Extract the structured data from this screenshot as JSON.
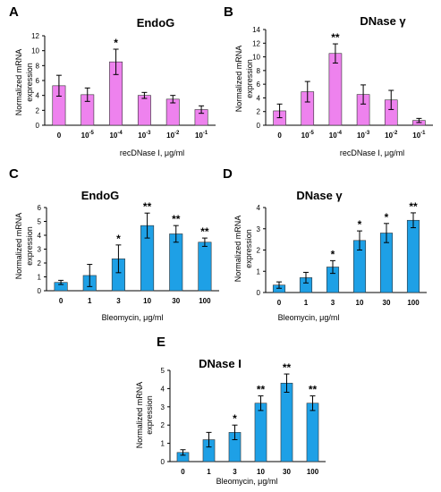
{
  "colors": {
    "pink": "#ee82ee",
    "blue": "#1ea0e6",
    "axis": "#000000"
  },
  "chart_data": [
    {
      "panel": "A",
      "title": "EndoG",
      "type": "bar",
      "xlabel": "recDNase I, μg/ml",
      "ylabel": "Normalized mRNA expression",
      "ylim": [
        0,
        12
      ],
      "yticks": [
        0,
        2,
        4,
        6,
        8,
        10,
        12
      ],
      "categories": [
        "0",
        "10⁻⁵",
        "10⁻⁴",
        "10⁻³",
        "10⁻²",
        "10⁻¹"
      ],
      "values": [
        5.3,
        4.1,
        8.5,
        4.0,
        3.5,
        2.1
      ],
      "errors": [
        1.4,
        0.9,
        1.7,
        0.4,
        0.5,
        0.5
      ],
      "significance": [
        "",
        "",
        "*",
        "",
        "",
        ""
      ],
      "color": "#ee82ee"
    },
    {
      "panel": "B",
      "title": "DNase γ",
      "type": "bar",
      "xlabel": "recDNase I, μg/ml",
      "ylabel": "Normalized mRNA expression",
      "ylim": [
        0,
        14
      ],
      "yticks": [
        0,
        2,
        4,
        6,
        8,
        10,
        12,
        14
      ],
      "categories": [
        "0",
        "10⁻⁵",
        "10⁻⁴",
        "10⁻³",
        "10⁻²",
        "10⁻¹"
      ],
      "values": [
        2.1,
        4.9,
        10.5,
        4.5,
        3.7,
        0.7
      ],
      "errors": [
        1.0,
        1.5,
        1.4,
        1.4,
        1.4,
        0.3
      ],
      "significance": [
        "",
        "",
        "**",
        "",
        "",
        ""
      ],
      "color": "#ee82ee"
    },
    {
      "panel": "C",
      "title": "EndoG",
      "type": "bar",
      "xlabel": "Bleomycin, μg/ml",
      "ylabel": "Normalized mRNA expression",
      "ylim": [
        0,
        6
      ],
      "yticks": [
        0,
        1,
        2,
        3,
        4,
        5,
        6
      ],
      "categories": [
        "0",
        "1",
        "3",
        "10",
        "30",
        "100"
      ],
      "values": [
        0.6,
        1.1,
        2.3,
        4.7,
        4.1,
        3.5
      ],
      "errors": [
        0.15,
        0.8,
        1.0,
        0.9,
        0.6,
        0.3
      ],
      "significance": [
        "",
        "",
        "*",
        "**",
        "**",
        "**"
      ],
      "color": "#1ea0e6"
    },
    {
      "panel": "D",
      "title": "DNase γ",
      "type": "bar",
      "xlabel": "Bleomycin, μg/ml",
      "ylabel": "Normalized mRNA expression",
      "ylim": [
        0,
        4
      ],
      "yticks": [
        0,
        1,
        2,
        3,
        4
      ],
      "categories": [
        "0",
        "1",
        "3",
        "10",
        "30",
        "100"
      ],
      "values": [
        0.35,
        0.7,
        1.2,
        2.45,
        2.8,
        3.4
      ],
      "errors": [
        0.15,
        0.25,
        0.3,
        0.45,
        0.45,
        0.35
      ],
      "significance": [
        "",
        "",
        "*",
        "*",
        "*",
        "**"
      ],
      "color": "#1ea0e6"
    },
    {
      "panel": "E",
      "title": "DNase I",
      "type": "bar",
      "xlabel": "Bleomycin, μg/ml",
      "ylabel": "Normalized mRNA expression",
      "ylim": [
        0,
        5
      ],
      "yticks": [
        0,
        1,
        2,
        3,
        4,
        5
      ],
      "categories": [
        "0",
        "1",
        "3",
        "10",
        "30",
        "100"
      ],
      "values": [
        0.5,
        1.2,
        1.6,
        3.2,
        4.3,
        3.2
      ],
      "errors": [
        0.15,
        0.4,
        0.4,
        0.4,
        0.5,
        0.4
      ],
      "significance": [
        "",
        "",
        "*",
        "**",
        "**",
        "**"
      ],
      "color": "#1ea0e6"
    }
  ]
}
